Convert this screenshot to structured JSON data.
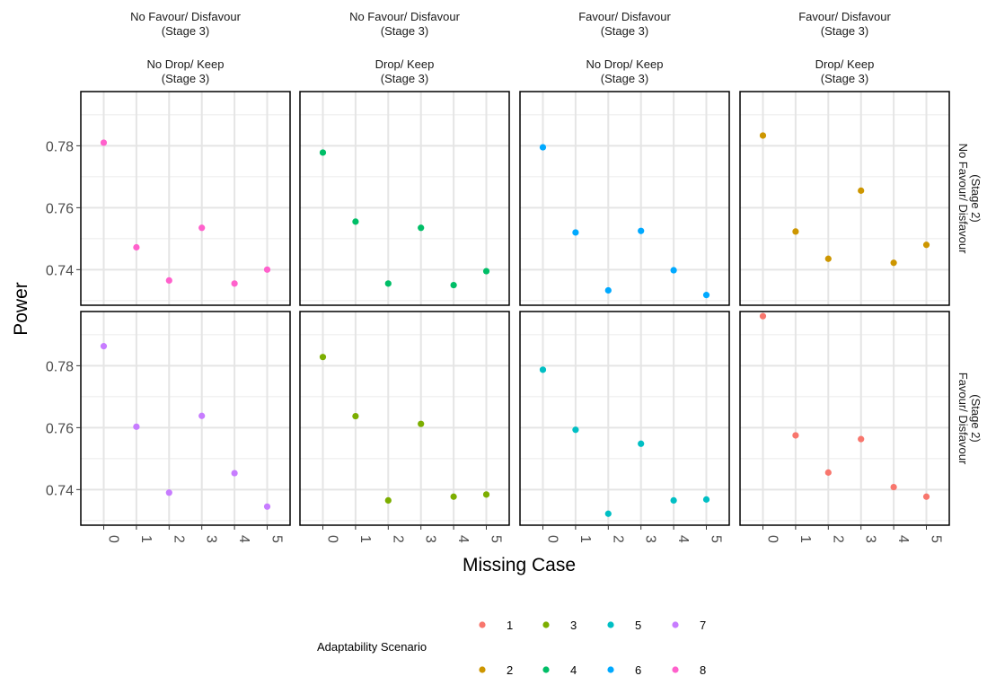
{
  "chart_data": {
    "type": "scatter",
    "xlabel": "Missing Case",
    "ylabel": "Power",
    "x_ticks": [
      "0",
      "1",
      "2",
      "3",
      "4",
      "5"
    ],
    "y_ticks": [
      "0.74",
      "0.76",
      "0.78"
    ],
    "ylim": [
      0.7285,
      0.7975
    ],
    "grid": true,
    "legend": {
      "title": "Adaptability Scenario",
      "position": "bottom",
      "rows": [
        [
          "1",
          "3",
          "5",
          "7"
        ],
        [
          "2",
          "4",
          "6",
          "8"
        ]
      ]
    },
    "colors": {
      "1": "#F8766D",
      "2": "#CD9600",
      "3": "#7CAE00",
      "4": "#00BE67",
      "5": "#00BFC4",
      "6": "#00A9FF",
      "7": "#C77CFF",
      "8": "#FF61CC"
    },
    "columns": [
      {
        "strip1": [
          "No Favour/ Disfavour",
          "(Stage 3)"
        ],
        "strip2": [
          "No Drop/ Keep",
          "(Stage 3)"
        ]
      },
      {
        "strip1": [
          "No Favour/ Disfavour",
          "(Stage 3)"
        ],
        "strip2": [
          "Drop/ Keep",
          "(Stage 3)"
        ]
      },
      {
        "strip1": [
          "Favour/ Disfavour",
          "(Stage 3)"
        ],
        "strip2": [
          "No Drop/ Keep",
          "(Stage 3)"
        ]
      },
      {
        "strip1": [
          "Favour/ Disfavour",
          "(Stage 3)"
        ],
        "strip2": [
          "Drop/ Keep",
          "(Stage 3)"
        ]
      }
    ],
    "rows": [
      {
        "strip": [
          "No Favour/ Disfavour",
          "(Stage 2)"
        ]
      },
      {
        "strip": [
          "Favour/ Disfavour",
          "(Stage 2)"
        ]
      }
    ],
    "panels": [
      {
        "row": 0,
        "col": 0,
        "scenario": "8",
        "x": [
          0,
          1,
          2,
          3,
          4,
          5
        ],
        "y": [
          0.781,
          0.7472,
          0.7365,
          0.7535,
          0.7355,
          0.74
        ]
      },
      {
        "row": 0,
        "col": 1,
        "scenario": "4",
        "x": [
          0,
          1,
          2,
          3,
          4,
          5
        ],
        "y": [
          0.7778,
          0.7555,
          0.7355,
          0.7535,
          0.735,
          0.7395
        ]
      },
      {
        "row": 0,
        "col": 2,
        "scenario": "6",
        "x": [
          0,
          1,
          2,
          3,
          4,
          5
        ],
        "y": [
          0.7795,
          0.752,
          0.7333,
          0.7525,
          0.7398,
          0.7318
        ]
      },
      {
        "row": 0,
        "col": 3,
        "scenario": "2",
        "x": [
          0,
          1,
          2,
          3,
          4,
          5
        ],
        "y": [
          0.7833,
          0.7523,
          0.7435,
          0.7655,
          0.7422,
          0.748
        ]
      },
      {
        "row": 1,
        "col": 0,
        "scenario": "7",
        "x": [
          0,
          1,
          2,
          3,
          4,
          5
        ],
        "y": [
          0.7863,
          0.7603,
          0.739,
          0.7638,
          0.7453,
          0.7345
        ]
      },
      {
        "row": 1,
        "col": 1,
        "scenario": "3",
        "x": [
          0,
          1,
          2,
          3,
          4,
          5
        ],
        "y": [
          0.7828,
          0.7637,
          0.7365,
          0.7612,
          0.7377,
          0.7384
        ]
      },
      {
        "row": 1,
        "col": 2,
        "scenario": "5",
        "x": [
          0,
          1,
          2,
          3,
          4,
          5
        ],
        "y": [
          0.7787,
          0.7593,
          0.7322,
          0.7548,
          0.7365,
          0.7368
        ]
      },
      {
        "row": 1,
        "col": 3,
        "scenario": "1",
        "x": [
          0,
          1,
          2,
          3,
          4,
          5
        ],
        "y": [
          0.796,
          0.7575,
          0.7455,
          0.7563,
          0.7408,
          0.7377
        ]
      }
    ]
  }
}
